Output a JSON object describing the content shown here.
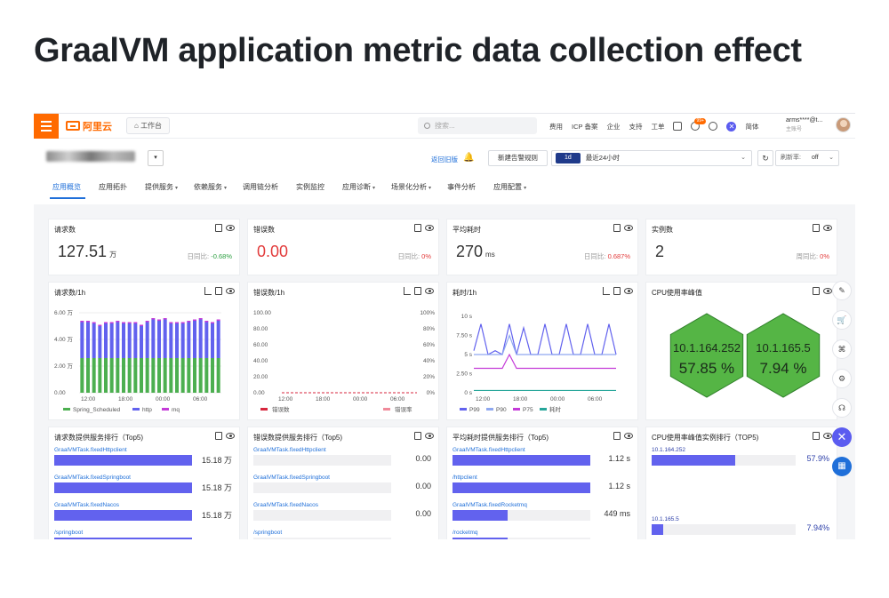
{
  "slide_title": "GraalVM application metric data collection effect",
  "topbar": {
    "logo": "阿里云",
    "workbench": "工作台",
    "search_placeholder": "搜索...",
    "nav": [
      "费用",
      "ICP 备案",
      "企业",
      "支持",
      "工单"
    ],
    "notif_badge": "99+",
    "lang": "简体",
    "user_name": "arms****@t...",
    "user_role": "主账号"
  },
  "subhead": {
    "back_old": "返回旧版",
    "new_alert": "新建告警规则",
    "time_tag": "1d",
    "time_label": "最近24小时",
    "refresh_label": "刷新率:",
    "refresh_value": "off"
  },
  "tabs": [
    {
      "label": "应用概览",
      "dd": ""
    },
    {
      "label": "应用拓扑",
      "dd": ""
    },
    {
      "label": "提供服务",
      "dd": "▾"
    },
    {
      "label": "依赖服务",
      "dd": "▾"
    },
    {
      "label": "调用链分析",
      "dd": ""
    },
    {
      "label": "实例监控",
      "dd": ""
    },
    {
      "label": "应用诊断",
      "dd": "▾"
    },
    {
      "label": "场景化分析",
      "dd": "▾"
    },
    {
      "label": "事件分析",
      "dd": ""
    },
    {
      "label": "应用配置",
      "dd": "▾"
    }
  ],
  "kpis": [
    {
      "title": "请求数",
      "value": "127.51",
      "unit": "万",
      "cmp_label": "日同比:",
      "cmp_value": "-0.68%",
      "cmp_color": "#2ea043",
      "value_red": false
    },
    {
      "title": "错误数",
      "value": "0.00",
      "unit": "",
      "cmp_label": "日同比:",
      "cmp_value": "0%",
      "cmp_color": "#e23b3b",
      "value_red": true
    },
    {
      "title": "平均耗时",
      "value": "270",
      "unit": "ms",
      "cmp_label": "日同比:",
      "cmp_value": "0.687%",
      "cmp_color": "#e23b3b",
      "value_red": false
    },
    {
      "title": "实例数",
      "value": "2",
      "unit": "",
      "cmp_label": "周同比:",
      "cmp_value": "0%",
      "cmp_color": "#e23b3b",
      "value_red": false
    }
  ],
  "chart_titles": [
    "请求数/1h",
    "错误数/1h",
    "耗时/1h",
    "CPU使用率峰值"
  ],
  "chart_data": [
    {
      "type": "bar",
      "y_ticks": [
        "6.00 万",
        "4.00 万",
        "2.00 万",
        "0.00"
      ],
      "x_ticks": [
        "12:00",
        "18:00",
        "00:00",
        "06:00"
      ],
      "ylim": [
        0,
        6
      ],
      "series": [
        {
          "name": "Spring_Scheduled",
          "color": "#4caf50",
          "values": [
            2.6,
            2.6,
            2.6,
            2.6,
            2.6,
            2.6,
            2.6,
            2.6,
            2.6,
            2.6,
            2.6,
            2.6,
            2.6,
            2.6,
            2.6,
            2.6,
            2.6,
            2.6,
            2.6,
            2.6,
            2.6,
            2.6,
            2.6,
            2.6
          ]
        },
        {
          "name": "http",
          "color": "#6262ee",
          "values": [
            2.7,
            2.7,
            2.6,
            2.4,
            2.6,
            2.6,
            2.7,
            2.6,
            2.6,
            2.6,
            2.4,
            2.7,
            2.9,
            2.8,
            2.9,
            2.6,
            2.6,
            2.6,
            2.7,
            2.8,
            2.9,
            2.7,
            2.6,
            2.8
          ]
        },
        {
          "name": "mq",
          "color": "#c43bd8",
          "values": [
            0.1,
            0.1,
            0.1,
            0.1,
            0.1,
            0.1,
            0.1,
            0.1,
            0.1,
            0.1,
            0.1,
            0.1,
            0.1,
            0.1,
            0.1,
            0.1,
            0.1,
            0.1,
            0.1,
            0.1,
            0.1,
            0.1,
            0.1,
            0.1
          ]
        }
      ]
    },
    {
      "type": "line",
      "y_ticks_left": [
        "100.00",
        "80.00",
        "60.00",
        "40.00",
        "20.00",
        "0.00"
      ],
      "y_ticks_right": [
        "100%",
        "80%",
        "60%",
        "40%",
        "20%",
        "0%"
      ],
      "x_ticks": [
        "12:00",
        "18:00",
        "00:00",
        "06:00"
      ],
      "ylim": [
        0,
        100
      ],
      "series": [
        {
          "name": "错误数",
          "color": "#d7263d",
          "values": [
            0,
            0,
            0,
            0,
            0,
            0,
            0,
            0,
            0,
            0,
            0,
            0
          ]
        },
        {
          "name": "错误率",
          "color": "#f08a9a",
          "values": [
            0,
            0,
            0,
            0,
            0,
            0,
            0,
            0,
            0,
            0,
            0,
            0
          ]
        }
      ]
    },
    {
      "type": "line",
      "y_ticks": [
        "10 s",
        "7.50 s",
        "5 s",
        "2.50 s",
        "0 s"
      ],
      "x_ticks": [
        "12:00",
        "18:00",
        "00:00",
        "06:00"
      ],
      "ylim": [
        0,
        10
      ],
      "series": [
        {
          "name": "P99",
          "color": "#6262ee",
          "values": [
            5.5,
            9,
            5,
            5.5,
            5,
            9,
            5,
            8.5,
            5,
            5,
            9,
            5,
            5,
            9,
            5,
            5,
            9,
            5,
            5,
            9,
            5
          ]
        },
        {
          "name": "P90",
          "color": "#8fa8f0",
          "values": [
            5,
            5,
            5,
            5,
            5,
            7.5,
            5,
            5,
            5,
            5,
            5,
            5,
            5,
            5,
            5,
            5,
            5,
            5,
            5,
            5,
            5
          ]
        },
        {
          "name": "P75",
          "color": "#c43bd8",
          "values": [
            3.2,
            3.2,
            3.2,
            3.2,
            3.2,
            5,
            3.2,
            3.2,
            3.2,
            3.2,
            3.2,
            3.2,
            3.2,
            3.2,
            3.2,
            3.2,
            3.2,
            3.2,
            3.2,
            3.2,
            3.2
          ]
        },
        {
          "name": "耗时",
          "color": "#26a69a",
          "values": [
            0.3,
            0.3,
            0.3,
            0.3,
            0.3,
            0.3,
            0.3,
            0.3,
            0.3,
            0.3,
            0.3,
            0.3,
            0.3,
            0.3,
            0.3,
            0.3,
            0.3,
            0.3,
            0.3,
            0.3,
            0.3
          ]
        }
      ]
    },
    {
      "type": "heatmap",
      "cells": [
        {
          "ip": "10.1.164.252",
          "value": "57.85 %"
        },
        {
          "ip": "10.1.165.5",
          "value": "7.94 %"
        }
      ],
      "color": "#55b545"
    }
  ],
  "rank_titles": [
    "请求数提供服务排行（Top5)",
    "错误数提供服务排行（Top5)",
    "平均耗时提供服务排行（Top5)",
    "CPU使用率峰值实例排行（TOP5)"
  ],
  "rankings": [
    [
      {
        "label": "GraalVMTask.fixedHttpclient",
        "value": "15.18 万",
        "pct": 1.0
      },
      {
        "label": "GraalVMTask.fixedSpringboot",
        "value": "15.18 万",
        "pct": 1.0
      },
      {
        "label": "GraalVMTask.fixedNacos",
        "value": "15.18 万",
        "pct": 1.0
      },
      {
        "label": "/springboot",
        "value": "",
        "pct": 1.0
      }
    ],
    [
      {
        "label": "GraalVMTask.fixedHttpclient",
        "value": "0.00",
        "pct": 0
      },
      {
        "label": "GraalVMTask.fixedSpringboot",
        "value": "0.00",
        "pct": 0
      },
      {
        "label": "GraalVMTask.fixedNacos",
        "value": "0.00",
        "pct": 0
      },
      {
        "label": "/springboot",
        "value": "",
        "pct": 0
      }
    ],
    [
      {
        "label": "GraalVMTask.fixedHttpclient",
        "value": "1.12 s",
        "pct": 1.0
      },
      {
        "label": "/httpclient",
        "value": "1.12 s",
        "pct": 1.0
      },
      {
        "label": "GraalVMTask.fixedRocketmq",
        "value": "449 ms",
        "pct": 0.4
      },
      {
        "label": "/rocketmq",
        "value": "",
        "pct": 0.4
      }
    ],
    [
      {
        "label": "10.1.164.252",
        "value": "57.9%",
        "pct": 0.579
      },
      {
        "label": "10.1.165.5",
        "value": "7.94%",
        "pct": 0.0794
      }
    ]
  ]
}
